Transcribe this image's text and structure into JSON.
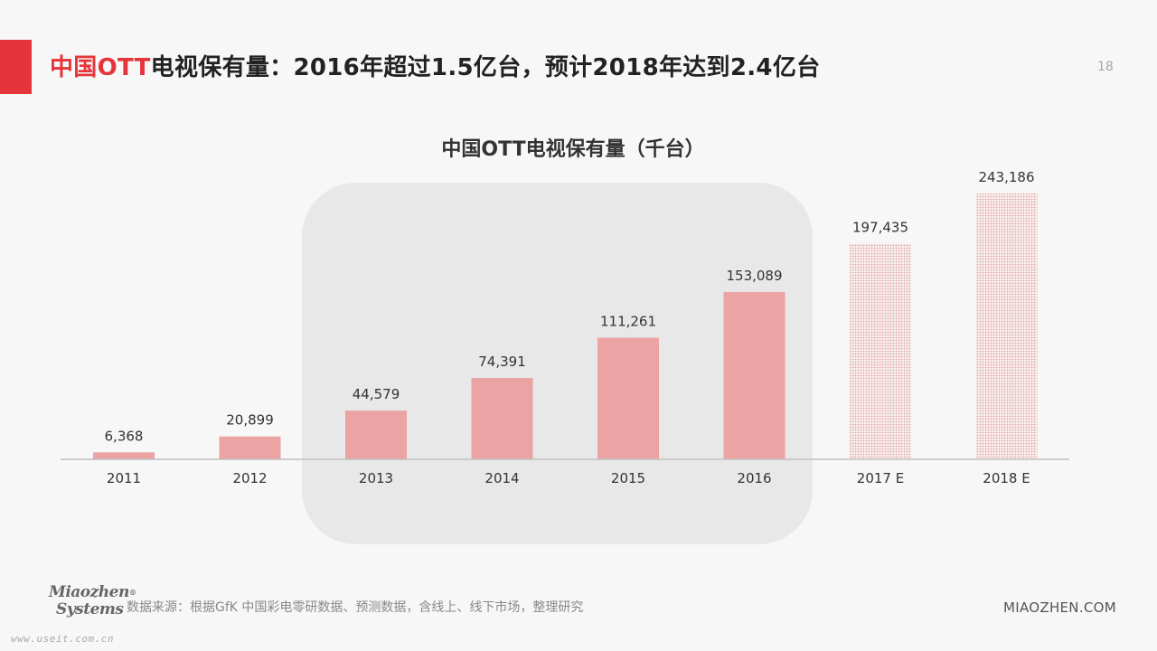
{
  "header": {
    "page_title_highlight": "中国OTT",
    "page_title_rest": "电视保有量：2016年超过1.5亿台，预计2018年达到2.4亿台",
    "page_number": "18"
  },
  "chart_data": {
    "type": "bar",
    "title": "中国OTT电视保有量（千台）",
    "categories": [
      "2011",
      "2012",
      "2013",
      "2014",
      "2015",
      "2016",
      "2017 E",
      "2018 E"
    ],
    "values": [
      6368,
      20899,
      44579,
      74391,
      111261,
      153089,
      197435,
      243186
    ],
    "value_labels": [
      "6,368",
      "20,899",
      "44,579",
      "74,391",
      "111,261",
      "153,089",
      "197,435",
      "243,186"
    ],
    "estimated": [
      false,
      false,
      false,
      false,
      false,
      false,
      true,
      true
    ],
    "highlighted_range": [
      "2013",
      "2016"
    ],
    "xlabel": "",
    "ylabel": "",
    "ylim": [
      0,
      243186
    ],
    "grid": false,
    "legend": "none",
    "colors": {
      "bar": "#eca3a3",
      "estimate_dots": "#e7a7a7",
      "highlight_bg": "#e8e8e8",
      "axis": "#bfbfbf"
    }
  },
  "footer": {
    "logo_line1": "Miaozhen",
    "logo_line2": "Systems",
    "logo_mark": "®",
    "watermark": "www.useit.com.cn",
    "source": "数据来源：根据GfK 中国彩电零研数据、预测数据，含线上、线下市场，整理研究",
    "brand": "MIAOZHEN.COM"
  }
}
